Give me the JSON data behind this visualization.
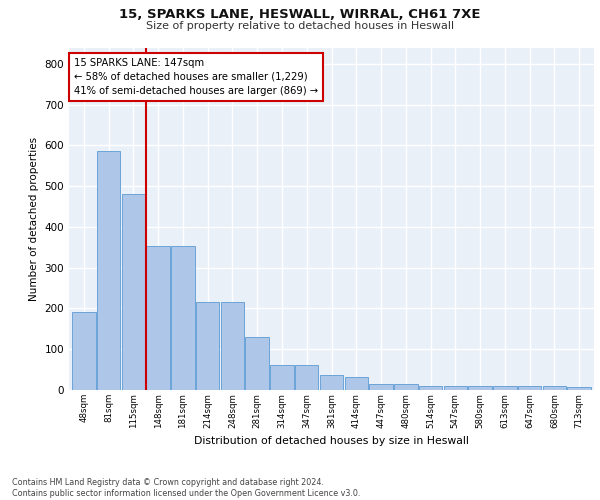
{
  "title_line1": "15, SPARKS LANE, HESWALL, WIRRAL, CH61 7XE",
  "title_line2": "Size of property relative to detached houses in Heswall",
  "xlabel": "Distribution of detached houses by size in Heswall",
  "ylabel": "Number of detached properties",
  "footnote": "Contains HM Land Registry data © Crown copyright and database right 2024.\nContains public sector information licensed under the Open Government Licence v3.0.",
  "bar_labels": [
    "48sqm",
    "81sqm",
    "115sqm",
    "148sqm",
    "181sqm",
    "214sqm",
    "248sqm",
    "281sqm",
    "314sqm",
    "347sqm",
    "381sqm",
    "414sqm",
    "447sqm",
    "480sqm",
    "514sqm",
    "547sqm",
    "580sqm",
    "613sqm",
    "647sqm",
    "680sqm",
    "713sqm"
  ],
  "bar_values": [
    192,
    585,
    480,
    352,
    352,
    215,
    215,
    130,
    62,
    62,
    38,
    32,
    15,
    15,
    10,
    10,
    10,
    10,
    10,
    10,
    8
  ],
  "bar_color": "#aec6e8",
  "bar_edge_color": "#5b9bd5",
  "bg_color": "#eaf0f8",
  "grid_color": "#ffffff",
  "annotation_box_text": "15 SPARKS LANE: 147sqm\n← 58% of detached houses are smaller (1,229)\n41% of semi-detached houses are larger (869) →",
  "annotation_box_color": "#cc0000",
  "vline_x_index": 2.5,
  "ylim": [
    0,
    840
  ],
  "yticks": [
    0,
    100,
    200,
    300,
    400,
    500,
    600,
    700,
    800
  ]
}
